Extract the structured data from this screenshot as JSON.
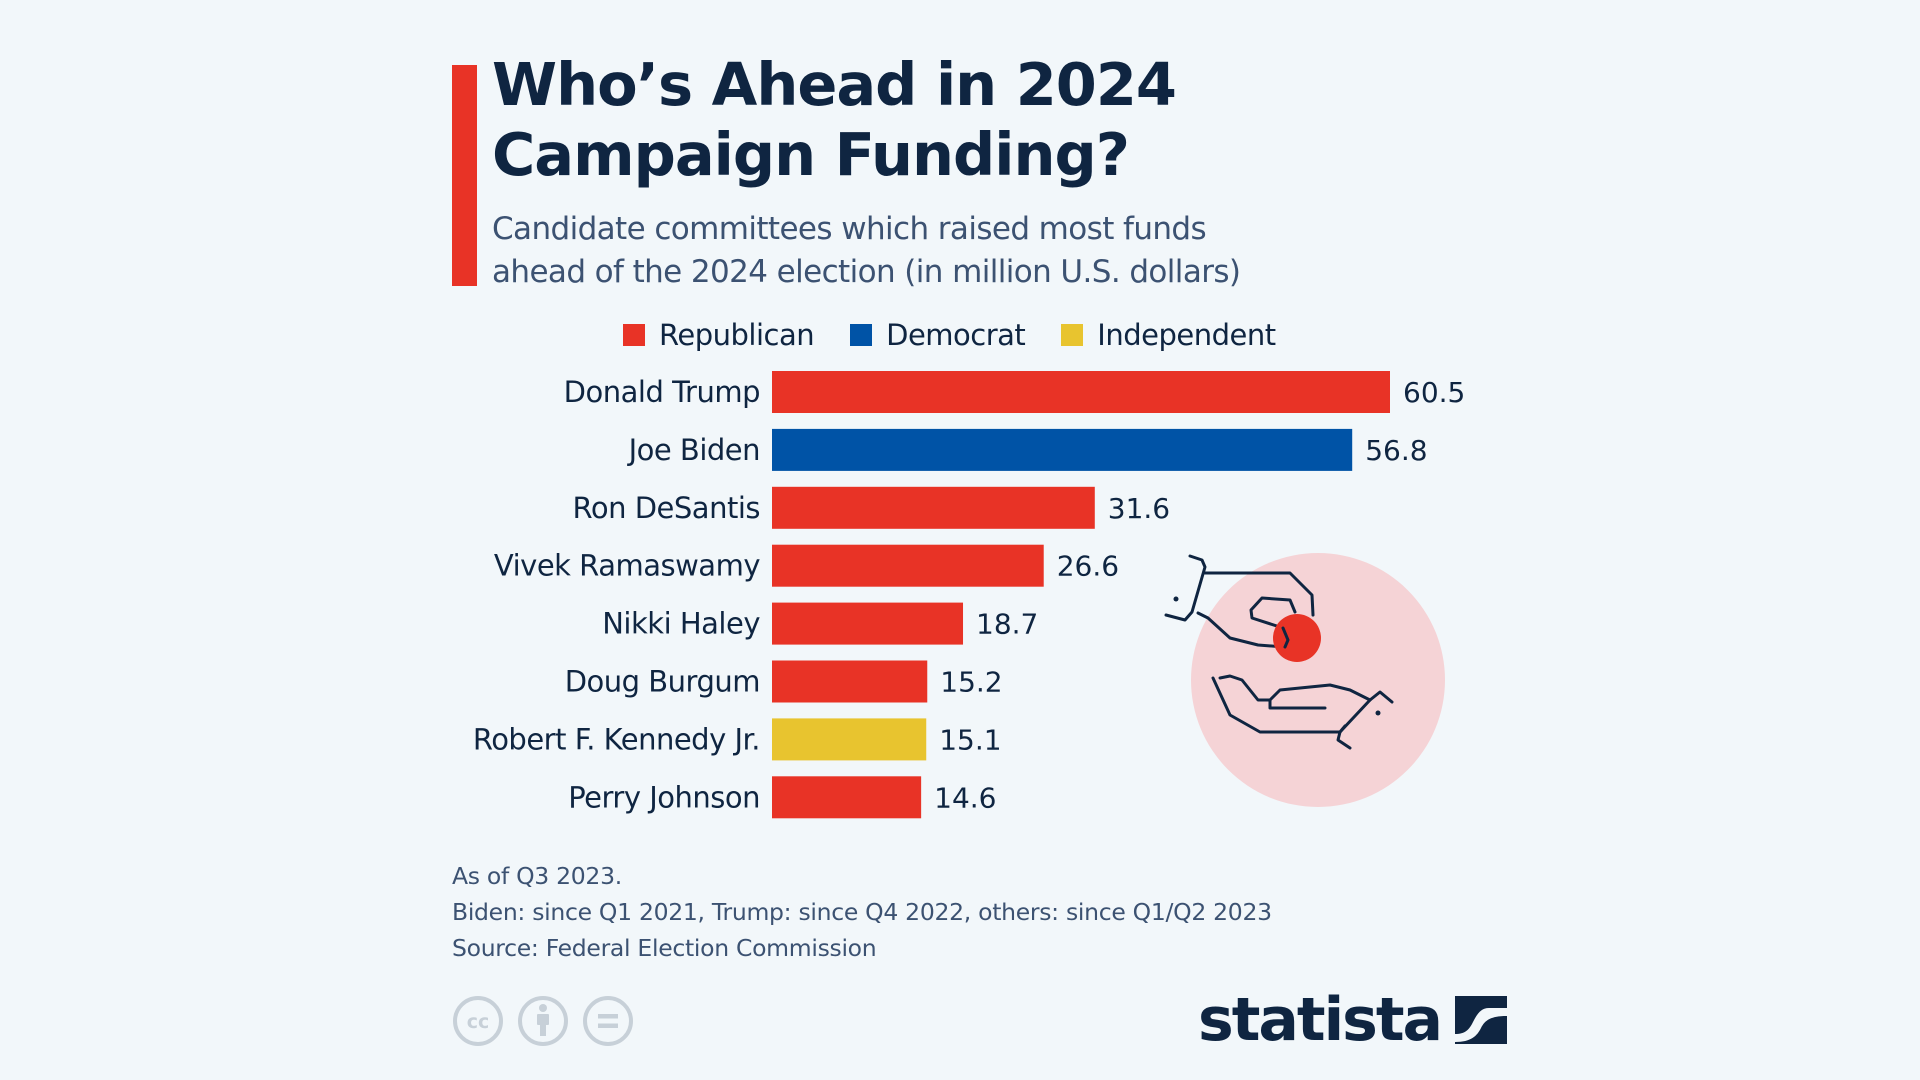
{
  "header": {
    "title_line1": "Who’s Ahead in 2024",
    "title_line2": "Campaign Funding?",
    "subtitle_line1": "Candidate committees which raised most funds",
    "subtitle_line2": "ahead of the 2024 election (in million U.S. dollars)"
  },
  "colors": {
    "accent": "#e83326",
    "republican": "#e83326",
    "democrat": "#0053a6",
    "independent": "#e8c42f",
    "text_dark": "#0f2541",
    "text_muted": "#3c5272",
    "background": "#f2f7fa",
    "illustration_circle": "#f5d3d6",
    "cc_icon": "#c7d0d8"
  },
  "legend": [
    {
      "label": "Republican",
      "color": "#e83326"
    },
    {
      "label": "Democrat",
      "color": "#0053a6"
    },
    {
      "label": "Independent",
      "color": "#e8c42f"
    }
  ],
  "chart_data": {
    "type": "bar",
    "orientation": "horizontal",
    "title": "Who’s Ahead in 2024 Campaign Funding?",
    "subtitle": "Candidate committees which raised most funds ahead of the 2024 election (in million U.S. dollars)",
    "xlabel": "",
    "ylabel": "",
    "unit": "million U.S. dollars",
    "grid": false,
    "legend_position": "top",
    "xlim": [
      0,
      60.5
    ],
    "categories": [
      "Donald Trump",
      "Joe Biden",
      "Ron DeSantis",
      "Vivek Ramaswamy",
      "Nikki Haley",
      "Doug Burgum",
      "Robert F. Kennedy Jr.",
      "Perry Johnson"
    ],
    "values": [
      60.5,
      56.8,
      31.6,
      26.6,
      18.7,
      15.2,
      15.1,
      14.6
    ],
    "value_labels": [
      "60.5",
      "56.8",
      "31.6",
      "26.6",
      "18.7",
      "15.2",
      "15.1",
      "14.6"
    ],
    "party": [
      "Republican",
      "Democrat",
      "Republican",
      "Republican",
      "Republican",
      "Republican",
      "Independent",
      "Republican"
    ]
  },
  "footer": {
    "note1": "As of Q3 2023.",
    "note2": "Biden: since Q1 2021, Trump: since Q4 2022, others: since Q1/Q2 2023",
    "source": "Source: Federal Election Commission"
  },
  "license_icons": [
    "cc-icon",
    "attribution-icon",
    "no-derivatives-icon"
  ],
  "brand": {
    "name": "statista"
  }
}
